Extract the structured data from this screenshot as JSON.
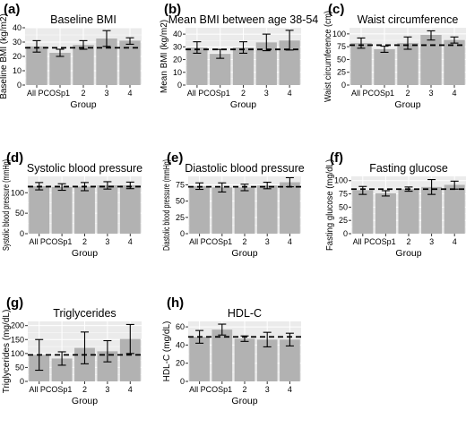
{
  "chart_data": [
    {
      "type": "bar",
      "panel_label": "(a)",
      "title": "Baseline BMI",
      "xlabel": "Group",
      "ylabel": "Baseline BMI (kg/m2)",
      "categories": [
        "All PCOS",
        "p1",
        "2",
        "3",
        "4"
      ],
      "category_tick_labels": [
        "All PCOSp1",
        "2",
        "3",
        "4"
      ],
      "values": [
        27,
        22.5,
        28,
        32.5,
        31
      ],
      "error_low": [
        23,
        20,
        25,
        27,
        28.5
      ],
      "error_high": [
        31,
        25,
        31,
        38,
        33
      ],
      "reference_line": 26,
      "ylim": [
        0,
        40
      ],
      "yticks": [
        0,
        10,
        20,
        30,
        40
      ],
      "grid": true
    },
    {
      "type": "bar",
      "panel_label": "(b)",
      "title": "Mean BMI between age 38-54",
      "xlabel": "Group",
      "ylabel": "Mean BMI (kg/m2)",
      "categories": [
        "All PCOS",
        "p1",
        "2",
        "3",
        "4"
      ],
      "category_tick_labels": [
        "All PCOSp1",
        "2",
        "3",
        "4"
      ],
      "values": [
        29.5,
        24.5,
        29.5,
        33.5,
        35
      ],
      "error_low": [
        25,
        21,
        25,
        27,
        27.5
      ],
      "error_high": [
        34,
        28,
        34,
        40,
        43
      ],
      "reference_line": 28,
      "ylim": [
        0,
        45
      ],
      "yticks": [
        0,
        10,
        20,
        30,
        40
      ],
      "grid": true
    },
    {
      "type": "bar",
      "panel_label": "(c)",
      "title": "Waist circumference",
      "xlabel": "Group",
      "ylabel": "Waist circumference (cm)",
      "categories": [
        "All PCOS",
        "p1",
        "2",
        "3",
        "4"
      ],
      "category_tick_labels": [
        "All PCOSp1",
        "2",
        "3",
        "4"
      ],
      "values": [
        82,
        70,
        82,
        98,
        88
      ],
      "error_low": [
        72,
        64,
        70,
        88,
        82
      ],
      "error_high": [
        92,
        76,
        94,
        106,
        94
      ],
      "reference_line": 78,
      "ylim": [
        0,
        112
      ],
      "yticks": [
        0,
        25,
        50,
        75,
        100
      ],
      "grid": true
    },
    {
      "type": "bar",
      "panel_label": "(d)",
      "title": "Systolic blood pressure",
      "xlabel": "Group",
      "ylabel": "Systolic blood pressure (mmHg)",
      "categories": [
        "All PCOS",
        "p1",
        "2",
        "3",
        "4"
      ],
      "category_tick_labels": [
        "All PCOSp1",
        "2",
        "3",
        "4"
      ],
      "values": [
        116,
        114,
        115,
        118,
        118
      ],
      "error_low": [
        107,
        106,
        105,
        109,
        110
      ],
      "error_high": [
        125,
        122,
        125,
        127,
        126
      ],
      "reference_line": 115,
      "ylim": [
        0,
        140
      ],
      "yticks": [
        0,
        50,
        100
      ],
      "grid": true
    },
    {
      "type": "bar",
      "panel_label": "(e)",
      "title": "Diastolic blood pressure",
      "xlabel": "Group",
      "ylabel": "Diastolic blood pressure (mmHg)",
      "categories": [
        "All PCOS",
        "p1",
        "2",
        "3",
        "4"
      ],
      "category_tick_labels": [
        "All PCOSp1",
        "2",
        "3",
        "4"
      ],
      "values": [
        73,
        71,
        71,
        74,
        79
      ],
      "error_low": [
        68,
        64,
        66,
        69,
        72
      ],
      "error_high": [
        78,
        78,
        76,
        79,
        86
      ],
      "reference_line": 72,
      "ylim": [
        0,
        88
      ],
      "yticks": [
        0,
        25,
        50,
        75
      ],
      "grid": true
    },
    {
      "type": "bar",
      "panel_label": "(f)",
      "title": "Fasting glucose",
      "xlabel": "Group",
      "ylabel": "Fasting glucose (mg/dL)",
      "categories": [
        "All PCOS",
        "p1",
        "2",
        "3",
        "4"
      ],
      "category_tick_labels": [
        "All PCOSp1",
        "2",
        "3",
        "4"
      ],
      "values": [
        82,
        76,
        84,
        88,
        92
      ],
      "error_low": [
        74,
        71,
        80,
        74,
        84
      ],
      "error_high": [
        89,
        81,
        88,
        102,
        99
      ],
      "reference_line": 84,
      "ylim": [
        0,
        108
      ],
      "yticks": [
        0,
        25,
        50,
        75,
        100
      ],
      "grid": true
    },
    {
      "type": "bar",
      "panel_label": "(g)",
      "title": "Triglycerides",
      "xlabel": "Group",
      "ylabel": "Triglycerides (mg/dL)",
      "categories": [
        "All PCOS",
        "p1",
        "2",
        "3",
        "4"
      ],
      "category_tick_labels": [
        "All PCOSp1",
        "2",
        "3",
        "4"
      ],
      "values": [
        95,
        82,
        120,
        108,
        152
      ],
      "error_low": [
        40,
        58,
        63,
        70,
        100
      ],
      "error_high": [
        150,
        106,
        177,
        146,
        204
      ],
      "reference_line": 95,
      "ylim": [
        0,
        215
      ],
      "yticks": [
        0,
        50,
        100,
        150,
        200
      ],
      "grid": true
    },
    {
      "type": "bar",
      "panel_label": "(h)",
      "title": "HDL-C",
      "xlabel": "Group",
      "ylabel": "HDL-C (mg/dL)",
      "categories": [
        "All PCOS",
        "p1",
        "2",
        "3",
        "4"
      ],
      "category_tick_labels": [
        "All PCOSp1",
        "2",
        "3",
        "4"
      ],
      "values": [
        49,
        57,
        47,
        46,
        46
      ],
      "error_low": [
        42,
        51,
        44,
        38,
        39
      ],
      "error_high": [
        56,
        63,
        50,
        54,
        53
      ],
      "reference_line": 49,
      "ylim": [
        0,
        66
      ],
      "yticks": [
        0,
        20,
        40,
        60
      ],
      "grid": true
    }
  ],
  "colors": {
    "panel_background": "#ebebeb",
    "grid_line": "#ffffff",
    "bar_fill": "#b2b2b2",
    "error_bar": "#000000",
    "reference_line": "#000000",
    "text": "#000000"
  }
}
